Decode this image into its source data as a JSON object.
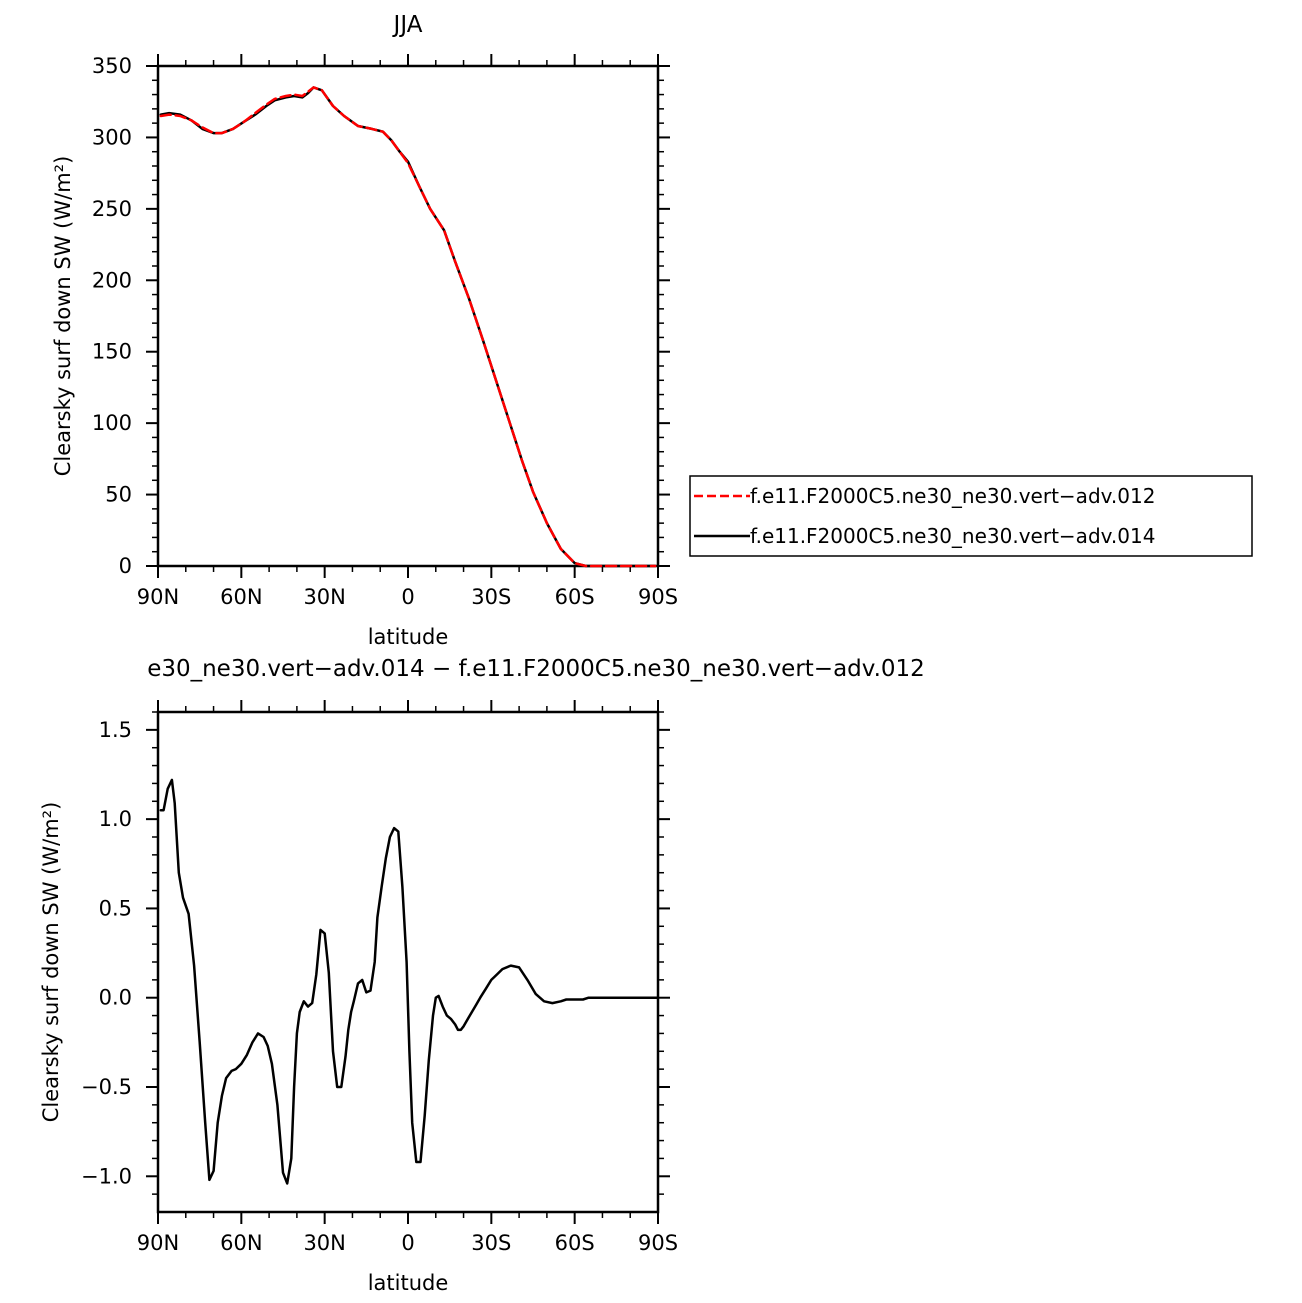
{
  "chart_data": [
    {
      "type": "line",
      "title": "JJA",
      "xlabel": "latitude",
      "ylabel": "Clearsky surf down SW (W/m²)",
      "x_tick_labels": [
        "90N",
        "60N",
        "30N",
        "0",
        "30S",
        "60S",
        "90S"
      ],
      "x_tick_values": [
        90,
        60,
        30,
        0,
        -30,
        -60,
        -90
      ],
      "xlim": [
        90,
        -90
      ],
      "y_tick_labels": [
        "0",
        "50",
        "100",
        "150",
        "200",
        "250",
        "300",
        "350"
      ],
      "y_tick_values": [
        0,
        50,
        100,
        150,
        200,
        250,
        300,
        350
      ],
      "ylim": [
        0,
        350
      ],
      "legend": {
        "placement": "right",
        "entries": [
          "f.e11.F2000C5.ne30_ne30.vert−adv.012",
          "f.e11.F2000C5.ne30_ne30.vert−adv.014"
        ]
      },
      "series": [
        {
          "name": "f.e11.F2000C5.ne30_ne30.vert−adv.012",
          "color": "#ff0000",
          "dash": "dashed",
          "x": [
            89,
            86,
            82,
            78,
            74,
            70,
            67,
            63,
            59,
            55,
            51,
            48,
            44,
            41,
            38,
            36,
            34,
            31,
            27,
            23,
            18,
            13,
            9,
            6,
            3,
            0,
            -4,
            -8,
            -13,
            -17,
            -22,
            -27,
            -32,
            -37,
            -41,
            -45,
            -50,
            -55,
            -60,
            -64,
            -68,
            -72,
            -76,
            -80,
            -85,
            -89
          ],
          "y": [
            315,
            316,
            315,
            312,
            307,
            303,
            303,
            306,
            311,
            317,
            323,
            327,
            329,
            330,
            329,
            332,
            335,
            333,
            322,
            315,
            308,
            306,
            304,
            298,
            290,
            282,
            266,
            250,
            235,
            213,
            187,
            158,
            128,
            98,
            74,
            52,
            30,
            12,
            2,
            0,
            0,
            0,
            0,
            0,
            0,
            0
          ]
        },
        {
          "name": "f.e11.F2000C5.ne30_ne30.vert−adv.014",
          "color": "#000000",
          "dash": "solid",
          "x": [
            89,
            86,
            82,
            78,
            74,
            70,
            67,
            63,
            59,
            55,
            51,
            48,
            44,
            41,
            38,
            36,
            34,
            31,
            27,
            23,
            18,
            13,
            9,
            6,
            3,
            0,
            -4,
            -8,
            -13,
            -17,
            -22,
            -27,
            -32,
            -37,
            -41,
            -45,
            -50,
            -55,
            -60,
            -64,
            -68,
            -72,
            -76,
            -80,
            -85,
            -89
          ],
          "y": [
            316,
            317,
            316,
            312,
            306,
            303,
            303,
            306,
            311,
            316,
            322,
            326,
            328,
            329,
            328,
            331,
            335,
            333,
            322,
            315,
            308,
            306,
            304,
            298,
            290,
            283,
            266,
            250,
            235,
            213,
            187,
            158,
            128,
            98,
            74,
            52,
            30,
            12,
            2,
            0,
            0,
            0,
            0,
            0,
            0,
            0
          ]
        }
      ]
    },
    {
      "type": "line",
      "title": "e30_ne30.vert−adv.014 − f.e11.F2000C5.ne30_ne30.vert−adv.012",
      "xlabel": "latitude",
      "ylabel": "Clearsky surf down SW (W/m²)",
      "x_tick_labels": [
        "90N",
        "60N",
        "30N",
        "0",
        "30S",
        "60S",
        "90S"
      ],
      "x_tick_values": [
        90,
        60,
        30,
        0,
        -30,
        -60,
        -90
      ],
      "xlim": [
        90,
        -90
      ],
      "y_tick_labels": [
        "−1.0",
        "−0.5",
        "0.0",
        "0.5",
        "1.0",
        "1.5"
      ],
      "y_tick_values": [
        -1.0,
        -0.5,
        0.0,
        0.5,
        1.0,
        1.5
      ],
      "ylim": [
        -1.2,
        1.6
      ],
      "series": [
        {
          "color": "#000000",
          "x": [
            89,
            88,
            86.5,
            85,
            84,
            82.5,
            81,
            79,
            77,
            75,
            73,
            71.5,
            70,
            68.5,
            67,
            65.5,
            63.5,
            62,
            60,
            58,
            56,
            54,
            52,
            50.5,
            49,
            47,
            45,
            43.5,
            42,
            41,
            40,
            39,
            37.5,
            36,
            34.5,
            33,
            31.5,
            30,
            28.5,
            27,
            25.5,
            24,
            22.5,
            21.5,
            20.5,
            19.5,
            18,
            16.5,
            15,
            13.5,
            12,
            11,
            9.5,
            8,
            6.5,
            5,
            3.5,
            2,
            0.5,
            -0.5,
            -1.5,
            -3,
            -4.5,
            -6,
            -7.5,
            -9,
            -10,
            -11,
            -12.5,
            -14,
            -15.5,
            -17,
            -18,
            -19,
            -20,
            -21.5,
            -23,
            -24.5,
            -26,
            -28,
            -30,
            -32,
            -34,
            -37,
            -40,
            -43,
            -46,
            -49,
            -52,
            -55,
            -57,
            -59,
            -61,
            -63,
            -65,
            -67,
            -69,
            -71,
            -74,
            -77,
            -80,
            -84,
            -88,
            -90
          ],
          "y": [
            1.05,
            1.05,
            1.17,
            1.22,
            1.09,
            0.7,
            0.56,
            0.47,
            0.18,
            -0.25,
            -0.7,
            -1.02,
            -0.97,
            -0.7,
            -0.55,
            -0.45,
            -0.41,
            -0.4,
            -0.37,
            -0.32,
            -0.25,
            -0.2,
            -0.22,
            -0.27,
            -0.37,
            -0.6,
            -0.98,
            -1.04,
            -0.9,
            -0.5,
            -0.2,
            -0.08,
            -0.02,
            -0.05,
            -0.03,
            0.13,
            0.38,
            0.36,
            0.14,
            -0.3,
            -0.5,
            -0.5,
            -0.33,
            -0.18,
            -0.08,
            -0.02,
            0.08,
            0.1,
            0.03,
            0.04,
            0.2,
            0.45,
            0.62,
            0.78,
            0.9,
            0.95,
            0.93,
            0.62,
            0.2,
            -0.3,
            -0.7,
            -0.92,
            -0.92,
            -0.66,
            -0.35,
            -0.1,
            0.0,
            0.01,
            -0.05,
            -0.1,
            -0.12,
            -0.15,
            -0.18,
            -0.18,
            -0.16,
            -0.12,
            -0.08,
            -0.04,
            0.0,
            0.05,
            0.1,
            0.13,
            0.16,
            0.18,
            0.17,
            0.1,
            0.02,
            -0.02,
            -0.03,
            -0.02,
            -0.01,
            -0.01,
            -0.01,
            -0.01,
            0.0,
            0.0,
            0.0,
            0.0,
            0.0,
            0.0,
            0.0,
            0.0,
            0.0,
            0.0
          ]
        }
      ]
    }
  ]
}
